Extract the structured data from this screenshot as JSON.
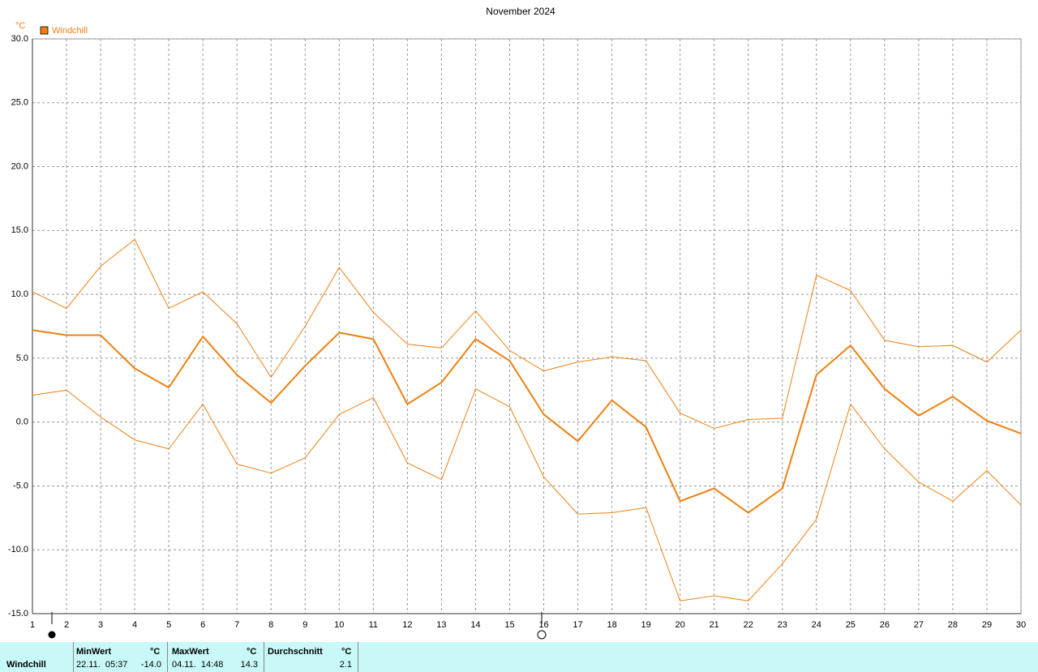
{
  "chart_data": {
    "type": "line",
    "title": "November 2024",
    "y_label": "°C",
    "x": [
      1,
      2,
      3,
      4,
      5,
      6,
      7,
      8,
      9,
      10,
      11,
      12,
      13,
      14,
      15,
      16,
      17,
      18,
      19,
      20,
      21,
      22,
      23,
      24,
      25,
      26,
      27,
      28,
      29,
      30
    ],
    "xlim": [
      1,
      30
    ],
    "xticks": [
      1,
      2,
      3,
      4,
      5,
      6,
      7,
      8,
      9,
      10,
      11,
      12,
      13,
      14,
      15,
      16,
      17,
      18,
      19,
      20,
      21,
      22,
      23,
      24,
      25,
      26,
      27,
      28,
      29,
      30
    ],
    "ylim": [
      -15,
      30
    ],
    "yticks": [
      {
        "value": 30,
        "label": "30.0"
      },
      {
        "value": 25,
        "label": "25.0"
      },
      {
        "value": 20,
        "label": "20.0"
      },
      {
        "value": 15,
        "label": "15.0"
      },
      {
        "value": 10,
        "label": "10.0"
      },
      {
        "value": 5,
        "label": "5.0"
      },
      {
        "value": 0,
        "label": "0.0"
      },
      {
        "value": -5,
        "label": "-5.0"
      },
      {
        "value": -10,
        "label": "-10.0"
      },
      {
        "value": -15,
        "label": "-15.0"
      }
    ],
    "grid": true,
    "legend": "top-left",
    "series": [
      {
        "color": "#f08010",
        "values": [
          10.2,
          8.9,
          12.2,
          14.3,
          8.9,
          10.2,
          7.7,
          3.5,
          7.5,
          12.1,
          8.6,
          6.1,
          5.8,
          8.7,
          5.6,
          4.0,
          4.7,
          5.1,
          4.8,
          0.7,
          -0.5,
          0.2,
          0.3,
          11.5,
          10.3,
          6.4,
          5.9,
          6.0,
          4.7,
          7.2
        ]
      },
      {
        "name": "Windchill",
        "color": "#f08010",
        "values": [
          7.2,
          6.8,
          6.8,
          4.2,
          2.7,
          6.7,
          3.7,
          1.5,
          4.4,
          7.0,
          6.5,
          1.4,
          3.1,
          6.5,
          4.8,
          0.6,
          -1.5,
          1.7,
          -0.4,
          -6.2,
          -5.2,
          -7.1,
          -5.2,
          3.7,
          6.0,
          2.6,
          0.5,
          2.0,
          0.1,
          -0.9
        ]
      },
      {
        "color": "#f08010",
        "values": [
          2.1,
          2.5,
          0.4,
          -1.4,
          -2.1,
          1.4,
          -3.3,
          -4.0,
          -2.8,
          0.6,
          1.9,
          -3.2,
          -4.5,
          2.6,
          1.2,
          -4.3,
          -7.2,
          -7.1,
          -6.7,
          -14.0,
          -13.6,
          -14.0,
          -11.1,
          -7.6,
          1.4,
          -2.1,
          -4.7,
          -6.2,
          -3.8,
          -6.5
        ]
      }
    ]
  },
  "summary": {
    "label": "Windchill",
    "columns": [
      {
        "header": "MinWert",
        "unit": "°C",
        "time": "22.11.  05:37",
        "value": "-14.0"
      },
      {
        "header": "MaxWert",
        "unit": "°C",
        "time": "04.11.  14:48",
        "value": "14.3"
      },
      {
        "header": "Durchschnitt",
        "unit": "°C",
        "value": "2.1"
      }
    ]
  }
}
